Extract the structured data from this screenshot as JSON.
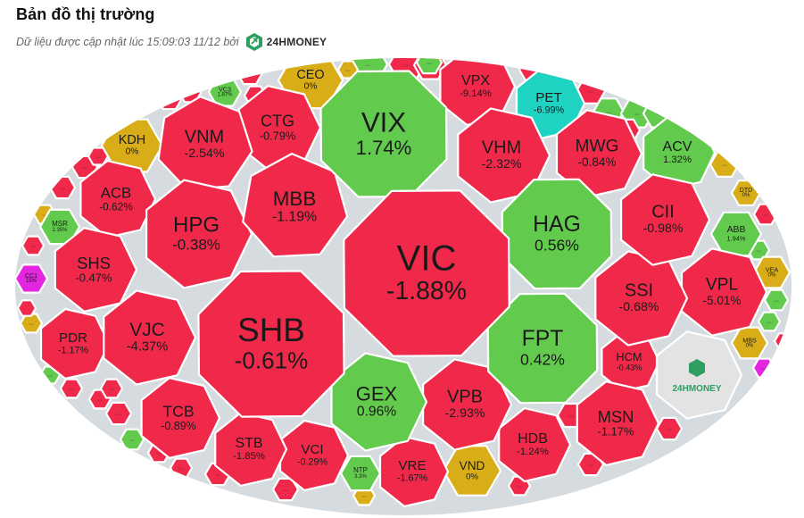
{
  "header": {
    "title": "Bản đồ thị trường",
    "updated_text": "Dữ liệu được cập nhật lúc 15:09:03 11/12 bởi",
    "brand": "24HMONEY"
  },
  "colors": {
    "up": "#62cb4d",
    "down": "#f0294a",
    "flat": "#d8ad18",
    "floor": "#1fd3c2",
    "ceiling": "#e426e0",
    "self": "#e3e3e3",
    "logo": "#2f9e63"
  },
  "chart_data": {
    "type": "treemap",
    "title": "Bản đồ thị trường",
    "cells": [
      {
        "ticker": "VIC",
        "change": "-1.88%",
        "status": "down"
      },
      {
        "ticker": "SHB",
        "change": "-0.61%",
        "status": "down"
      },
      {
        "ticker": "VIX",
        "change": "1.74%",
        "status": "up"
      },
      {
        "ticker": "HAG",
        "change": "0.56%",
        "status": "up"
      },
      {
        "ticker": "FPT",
        "change": "0.42%",
        "status": "up"
      },
      {
        "ticker": "MBB",
        "change": "-1.19%",
        "status": "down"
      },
      {
        "ticker": "HPG",
        "change": "-0.38%",
        "status": "down"
      },
      {
        "ticker": "GEX",
        "change": "0.96%",
        "status": "up"
      },
      {
        "ticker": "VJC",
        "change": "-4.37%",
        "status": "down"
      },
      {
        "ticker": "VNM",
        "change": "-2.54%",
        "status": "down"
      },
      {
        "ticker": "CTG",
        "change": "-0.79%",
        "status": "down"
      },
      {
        "ticker": "VHM",
        "change": "-2.32%",
        "status": "down"
      },
      {
        "ticker": "VPB",
        "change": "-2.93%",
        "status": "down"
      },
      {
        "ticker": "CII",
        "change": "-0.98%",
        "status": "down"
      },
      {
        "ticker": "SSI",
        "change": "-0.68%",
        "status": "down"
      },
      {
        "ticker": "VPL",
        "change": "-5.01%",
        "status": "down"
      },
      {
        "ticker": "MWG",
        "change": "-0.84%",
        "status": "down"
      },
      {
        "ticker": "SHS",
        "change": "-0.47%",
        "status": "down"
      },
      {
        "ticker": "MSN",
        "change": "-1.17%",
        "status": "down"
      },
      {
        "ticker": "TCB",
        "change": "-0.89%",
        "status": "down"
      },
      {
        "ticker": "VPX",
        "change": "-9.14%",
        "status": "down"
      },
      {
        "ticker": "ACV",
        "change": "1.32%",
        "status": "up"
      },
      {
        "ticker": "PET",
        "change": "-6.99%",
        "status": "floor"
      },
      {
        "ticker": "HDB",
        "change": "-1.24%",
        "status": "down"
      },
      {
        "ticker": "VRE",
        "change": "-1.67%",
        "status": "down"
      },
      {
        "ticker": "ACB",
        "change": "-0.62%",
        "status": "down"
      },
      {
        "ticker": "PDR",
        "change": "-1.17%",
        "status": "down"
      },
      {
        "ticker": "STB",
        "change": "-1.85%",
        "status": "down"
      },
      {
        "ticker": "VCI",
        "change": "-0.29%",
        "status": "down"
      },
      {
        "ticker": "HCM",
        "change": "-0.43%",
        "status": "down"
      },
      {
        "ticker": "CEO",
        "change": "0%",
        "status": "flat"
      },
      {
        "ticker": "KDH",
        "change": "0%",
        "status": "flat"
      },
      {
        "ticker": "VND",
        "change": "0%",
        "status": "flat"
      },
      {
        "ticker": "ABB",
        "change": "1.94%",
        "status": "up"
      },
      {
        "ticker": "MSR",
        "change": "2.35%",
        "status": "up"
      },
      {
        "ticker": "VC3",
        "change": "1.87%",
        "status": "up"
      },
      {
        "ticker": "NTP",
        "change": "3.3%",
        "status": "up"
      },
      {
        "ticker": "VEA",
        "change": "0%",
        "status": "flat"
      },
      {
        "ticker": "MBS",
        "change": "0%",
        "status": "flat"
      },
      {
        "ticker": "DTD",
        "change": "0%",
        "status": "flat"
      },
      {
        "ticker": "CC1",
        "change": "15%",
        "status": "ceiling"
      }
    ],
    "small_cell_label": "..."
  }
}
